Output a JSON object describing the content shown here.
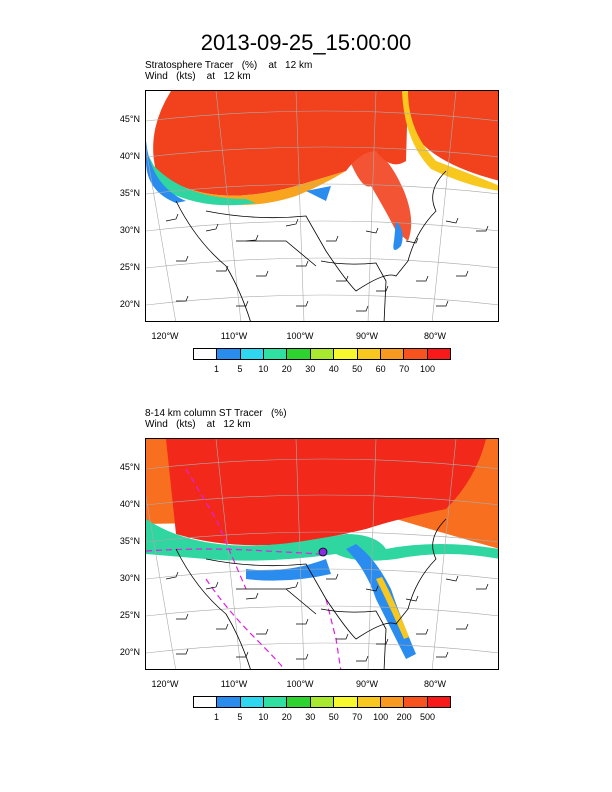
{
  "title": "2013-09-25_15:00:00",
  "colors": [
    "#ffffff",
    "#2b8cf0",
    "#2fd6f0",
    "#2fe0a0",
    "#2fd32f",
    "#a8e82f",
    "#f8f82f",
    "#f8c81f",
    "#f89a1f",
    "#f8521f",
    "#f81a1a"
  ],
  "panels": [
    {
      "line1": "Stratosphere Tracer   (%)    at   12 km",
      "line2": "Wind   (kts)    at   12 km",
      "lat_labels": [
        "45°N",
        "40°N",
        "35°N",
        "30°N",
        "25°N",
        "20°N"
      ],
      "lon_labels": [
        "120°W",
        "110°W",
        "100°W",
        "90°W",
        "80°W"
      ],
      "colorbar_labels": [
        "1",
        "5",
        "10",
        "20",
        "30",
        "40",
        "50",
        "60",
        "70",
        "100"
      ]
    },
    {
      "line1": "8-14 km column ST Tracer   (%)",
      "line2": "Wind   (kts)    at   12 km",
      "lat_labels": [
        "45°N",
        "40°N",
        "35°N",
        "30°N",
        "25°N",
        "20°N"
      ],
      "lon_labels": [
        "120°W",
        "110°W",
        "100°W",
        "90°W",
        "80°W"
      ],
      "colorbar_labels": [
        "1",
        "5",
        "10",
        "20",
        "30",
        "50",
        "70",
        "100",
        "200",
        "500"
      ]
    }
  ]
}
